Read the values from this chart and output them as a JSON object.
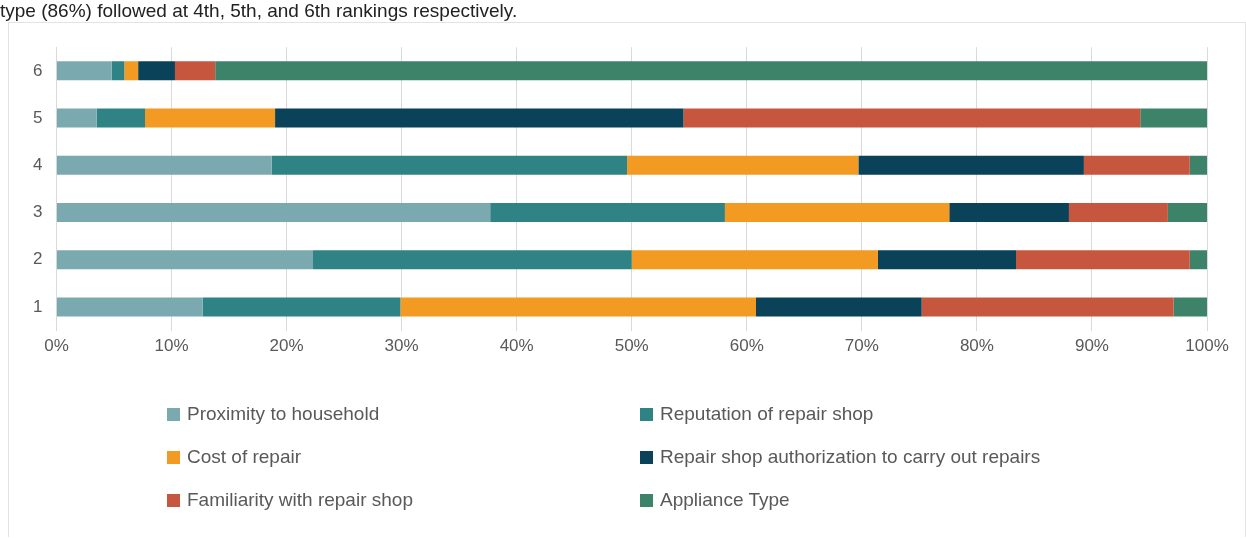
{
  "chart_data": {
    "type": "bar",
    "orientation": "horizontal",
    "stacked": true,
    "annotations": [
      "type (86%) followed at 4th, 5th, and 6th rankings respectively."
    ],
    "categories": [
      "6",
      "5",
      "4",
      "3",
      "2",
      "1"
    ],
    "series": [
      {
        "name": "Proximity to household",
        "color": "#7ba9b0",
        "values": [
          4.8,
          3.5,
          18.7,
          37.7,
          22.3,
          12.7
        ]
      },
      {
        "name": "Reputation of repair shop",
        "color": "#2f8385",
        "values": [
          1.1,
          4.2,
          30.9,
          20.4,
          27.7,
          17.2
        ]
      },
      {
        "name": "Cost of repair",
        "color": "#f29a21",
        "values": [
          1.2,
          11.3,
          20.1,
          19.5,
          21.4,
          30.9
        ]
      },
      {
        "name": "Repair shop authorization to carry out repairs",
        "color": "#0a4259",
        "values": [
          3.2,
          35.5,
          19.6,
          10.4,
          12.0,
          14.4
        ]
      },
      {
        "name": "Familiarity with repair shop",
        "color": "#c7563e",
        "values": [
          3.5,
          39.7,
          9.2,
          8.6,
          15.1,
          21.9
        ]
      },
      {
        "name": "Appliance Type",
        "color": "#3d836a",
        "values": [
          86.2,
          5.8,
          1.5,
          3.4,
          1.5,
          2.9
        ]
      }
    ],
    "xlim": [
      0,
      100
    ],
    "xticks": [
      {
        "value": 0,
        "label": "0%"
      },
      {
        "value": 10,
        "label": "10%"
      },
      {
        "value": 20,
        "label": "20%"
      },
      {
        "value": 30,
        "label": "30%"
      },
      {
        "value": 40,
        "label": "40%"
      },
      {
        "value": 50,
        "label": "50%"
      },
      {
        "value": 60,
        "label": "60%"
      },
      {
        "value": 70,
        "label": "70%"
      },
      {
        "value": 80,
        "label": "80%"
      },
      {
        "value": 90,
        "label": "90%"
      },
      {
        "value": 100,
        "label": "100%"
      }
    ],
    "grid": "x",
    "legend": "bottom"
  }
}
